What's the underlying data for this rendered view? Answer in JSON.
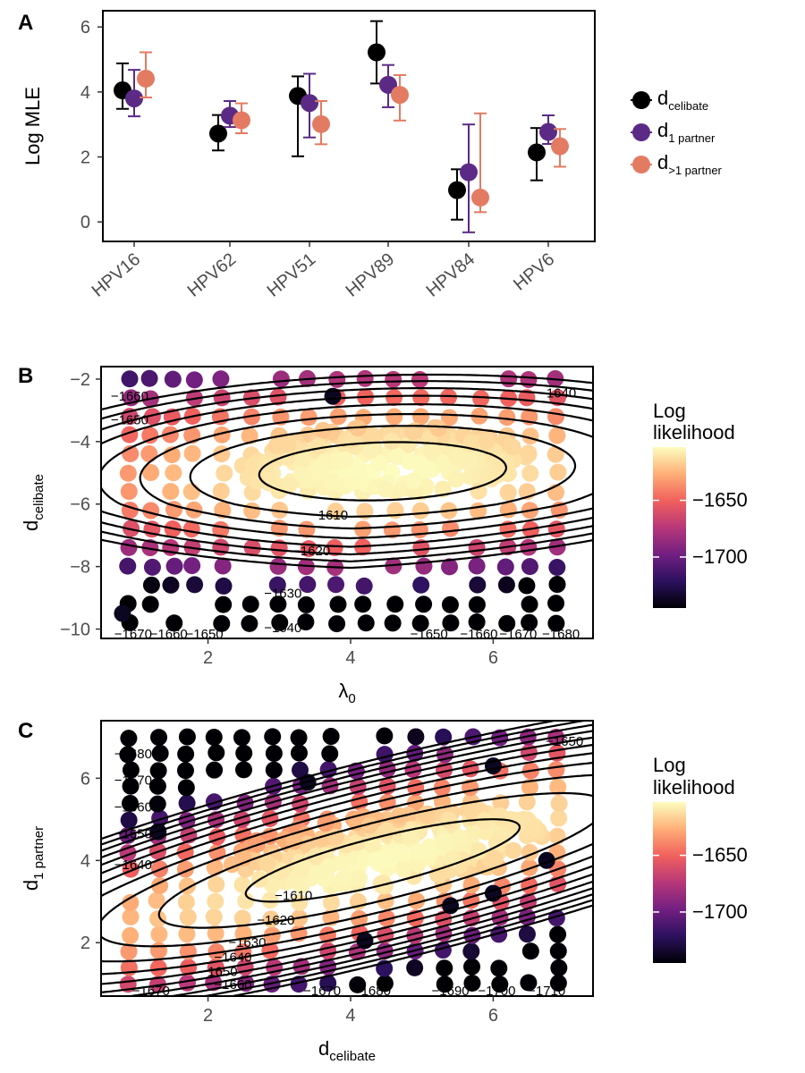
{
  "panel_letters": [
    "A",
    "B",
    "C"
  ],
  "legend_A": [
    {
      "label": "d",
      "sub": "celibate",
      "color": "#000000"
    },
    {
      "label": "d",
      "sub": "1 partner",
      "color": "#5b2a86"
    },
    {
      "label": "d",
      "sub": ">1 partner",
      "color": "#e37b62"
    }
  ],
  "colorbar": {
    "title_line1": "Log",
    "title_line2": "likelihood",
    "min": -1745,
    "max": -1603,
    "ticks": [
      -1650,
      -1700
    ],
    "tick_labels": [
      "−1650",
      "−1700"
    ],
    "stops": [
      "#000004",
      "#2c115f",
      "#721f81",
      "#b73779",
      "#f1605d",
      "#feaf77",
      "#fcfdbf"
    ]
  },
  "chart_data": [
    {
      "type": "scatter",
      "panel": "A",
      "ylabel": "Log MLE",
      "xlabel": "",
      "categories": [
        "HPV16",
        "HPV62",
        "HPV51",
        "HPV89",
        "HPV84",
        "HPV6"
      ],
      "ylim": [
        -0.6,
        6.5
      ],
      "yticks": [
        0,
        2,
        4,
        6
      ],
      "grid": false,
      "legend": "right",
      "series": [
        {
          "name": "d celibate",
          "color": "#000000",
          "values": [
            4.05,
            2.72,
            3.88,
            5.22,
            0.98,
            2.14
          ],
          "lower": [
            3.48,
            2.2,
            2.02,
            4.26,
            0.07,
            1.28
          ],
          "upper": [
            4.88,
            3.29,
            4.48,
            6.18,
            1.62,
            2.89
          ]
        },
        {
          "name": "d 1 partner",
          "color": "#5b2a86",
          "values": [
            3.8,
            3.27,
            3.66,
            4.22,
            1.53,
            2.77
          ],
          "lower": [
            3.25,
            2.92,
            2.6,
            3.53,
            -0.32,
            2.4
          ],
          "upper": [
            4.68,
            3.72,
            4.56,
            4.83,
            3.0,
            3.28
          ]
        },
        {
          "name": "d >1 partner",
          "color": "#e37b62",
          "values": [
            4.41,
            3.13,
            3.01,
            3.91,
            0.75,
            2.33
          ],
          "lower": [
            3.83,
            2.73,
            2.39,
            3.12,
            0.3,
            1.7
          ],
          "upper": [
            5.22,
            3.65,
            3.72,
            4.52,
            3.34,
            2.86
          ]
        }
      ]
    },
    {
      "type": "scatter",
      "panel": "B",
      "xlabel": "λ",
      "xlabel_sub": "0",
      "ylabel": "d",
      "ylabel_sub": "celibate",
      "xlim": [
        0.5,
        7.4
      ],
      "ylim": [
        -10.3,
        -1.6
      ],
      "xticks": [
        2,
        4,
        6
      ],
      "yticks": [
        -2,
        -4,
        -6,
        -8,
        -10
      ],
      "ytick_labels": [
        "−2",
        "−4",
        "−6",
        "−8",
        "−10"
      ],
      "color_by": "log likelihood",
      "contour_labels": [
        {
          "text": "−1660",
          "x": 0.9,
          "y": -2.55
        },
        {
          "text": "−1650",
          "x": 0.9,
          "y": -3.3
        },
        {
          "text": "−1640",
          "x": 6.9,
          "y": -2.45
        },
        {
          "text": "−1610",
          "x": 3.7,
          "y": -6.35
        },
        {
          "text": "−1620",
          "x": 3.45,
          "y": -7.5
        },
        {
          "text": "−1630",
          "x": 3.05,
          "y": -8.85
        },
        {
          "text": "−1640",
          "x": 3.05,
          "y": -9.95
        },
        {
          "text": "−1670",
          "x": 0.95,
          "y": -10.15
        },
        {
          "text": "−1660",
          "x": 1.45,
          "y": -10.15
        },
        {
          "text": "−1650",
          "x": 1.95,
          "y": -10.15
        },
        {
          "text": "−1650",
          "x": 5.1,
          "y": -10.15
        },
        {
          "text": "−1660",
          "x": 5.8,
          "y": -10.15
        },
        {
          "text": "−1670",
          "x": 6.35,
          "y": -10.15
        },
        {
          "text": "−1680",
          "x": 6.95,
          "y": -10.15
        }
      ],
      "contour_levels": [
        -1610,
        -1620,
        -1630,
        -1640,
        -1650,
        -1660,
        -1670,
        -1680
      ]
    },
    {
      "type": "scatter",
      "panel": "C",
      "xlabel": "d",
      "xlabel_sub": "celibate",
      "ylabel": "d",
      "ylabel_sub": "1 partner",
      "xlim": [
        0.5,
        7.4
      ],
      "ylim": [
        0.7,
        7.4
      ],
      "xticks": [
        2,
        4,
        6
      ],
      "yticks": [
        2,
        4,
        6
      ],
      "color_by": "log likelihood",
      "contour_labels": [
        {
          "text": "−1680",
          "x": 0.95,
          "y": 6.6
        },
        {
          "text": "−1670",
          "x": 0.95,
          "y": 5.95
        },
        {
          "text": "−1660",
          "x": 0.95,
          "y": 5.3
        },
        {
          "text": "−1650",
          "x": 0.95,
          "y": 4.65
        },
        {
          "text": "−1640",
          "x": 0.95,
          "y": 3.9
        },
        {
          "text": "−1650",
          "x": 7.0,
          "y": 6.9
        },
        {
          "text": "−1610",
          "x": 3.2,
          "y": 3.15
        },
        {
          "text": "−1620",
          "x": 2.95,
          "y": 2.55
        },
        {
          "text": "−1630",
          "x": 2.55,
          "y": 2.0
        },
        {
          "text": "−1640",
          "x": 2.35,
          "y": 1.65
        },
        {
          "text": "−1650",
          "x": 2.15,
          "y": 1.3
        },
        {
          "text": "−1660",
          "x": 2.35,
          "y": 0.98
        },
        {
          "text": "−1670",
          "x": 1.2,
          "y": 0.83
        },
        {
          "text": "−1670",
          "x": 3.6,
          "y": 0.83
        },
        {
          "text": "−1680",
          "x": 4.3,
          "y": 0.83
        },
        {
          "text": "−1690",
          "x": 5.4,
          "y": 0.83
        },
        {
          "text": "−1700",
          "x": 6.05,
          "y": 0.83
        },
        {
          "text": "−1710",
          "x": 6.75,
          "y": 0.83
        }
      ],
      "contour_levels": [
        -1610,
        -1620,
        -1630,
        -1640,
        -1650,
        -1660,
        -1670,
        -1680,
        -1690,
        -1700,
        -1710
      ]
    }
  ]
}
